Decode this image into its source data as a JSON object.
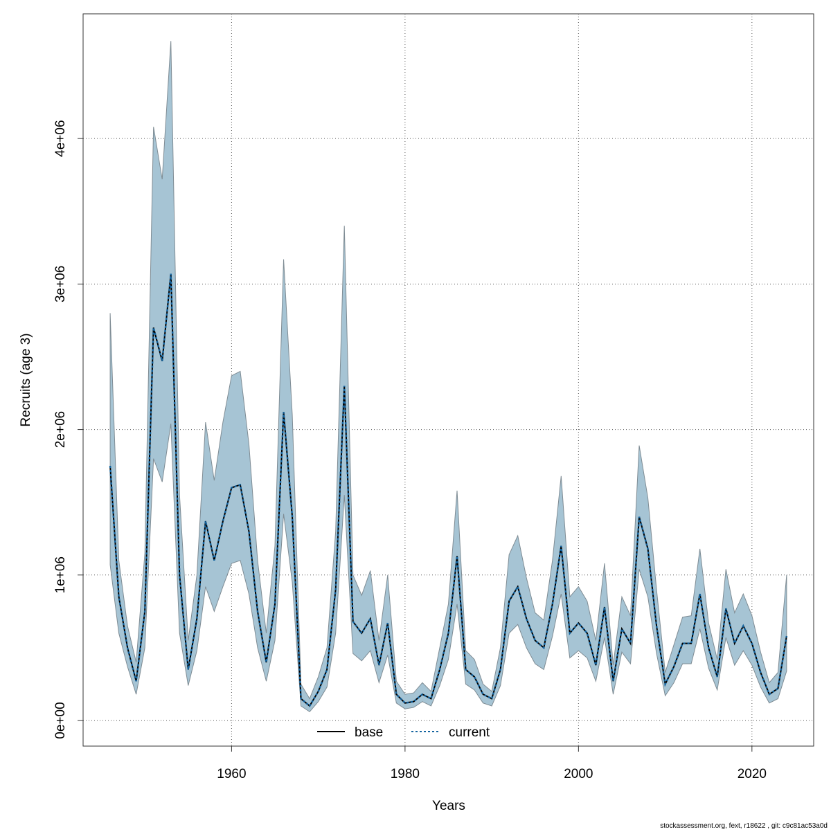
{
  "chart_data": {
    "type": "line",
    "x_label": "Years",
    "y_label": "Recruits (age 3)",
    "footer": "stockassessment.org, fext, r18622 , git: c9c81ac53a0d",
    "x": [
      1946,
      1947,
      1948,
      1949,
      1950,
      1951,
      1952,
      1953,
      1954,
      1955,
      1956,
      1957,
      1958,
      1959,
      1960,
      1961,
      1962,
      1963,
      1964,
      1965,
      1966,
      1967,
      1968,
      1969,
      1970,
      1971,
      1972,
      1973,
      1974,
      1975,
      1976,
      1977,
      1978,
      1979,
      1980,
      1981,
      1982,
      1983,
      1984,
      1985,
      1986,
      1987,
      1988,
      1989,
      1990,
      1991,
      1992,
      1993,
      1994,
      1995,
      1996,
      1997,
      1998,
      1999,
      2000,
      2001,
      2002,
      2003,
      2004,
      2005,
      2006,
      2007,
      2008,
      2009,
      2010,
      2011,
      2012,
      2013,
      2014,
      2015,
      2016,
      2017,
      2018,
      2019,
      2020,
      2021,
      2022,
      2023,
      2024
    ],
    "series": [
      {
        "name": "base",
        "color": "#000000",
        "dash": false,
        "values": [
          1750000.0,
          850000.0,
          500000.0,
          270000.0,
          750000.0,
          2700000.0,
          2470000.0,
          3070000.0,
          1000000.0,
          350000.0,
          700000.0,
          1370000.0,
          1100000.0,
          1370000.0,
          1600000.0,
          1620000.0,
          1300000.0,
          750000.0,
          400000.0,
          800000.0,
          2120000.0,
          1400000.0,
          150000.0,
          100000.0,
          200000.0,
          350000.0,
          900000.0,
          2300000.0,
          680000.0,
          600000.0,
          700000.0,
          380000.0,
          670000.0,
          180000.0,
          120000.0,
          130000.0,
          180000.0,
          150000.0,
          350000.0,
          600000.0,
          1130000.0,
          350000.0,
          300000.0,
          180000.0,
          150000.0,
          350000.0,
          820000.0,
          920000.0,
          700000.0,
          550000.0,
          500000.0,
          800000.0,
          1200000.0,
          600000.0,
          670000.0,
          600000.0,
          380000.0,
          780000.0,
          270000.0,
          630000.0,
          530000.0,
          1400000.0,
          1180000.0,
          650000.0,
          250000.0,
          370000.0,
          530000.0,
          530000.0,
          870000.0,
          500000.0,
          300000.0,
          770000.0,
          530000.0,
          650000.0,
          530000.0,
          330000.0,
          180000.0,
          220000.0,
          580000.0
        ]
      },
      {
        "name": "current",
        "color": "#1565a0",
        "dash": true,
        "values": [
          1750000.0,
          850000.0,
          500000.0,
          270000.0,
          750000.0,
          2700000.0,
          2470000.0,
          3070000.0,
          1000000.0,
          350000.0,
          700000.0,
          1370000.0,
          1100000.0,
          1370000.0,
          1600000.0,
          1620000.0,
          1300000.0,
          750000.0,
          400000.0,
          800000.0,
          2120000.0,
          1400000.0,
          150000.0,
          100000.0,
          200000.0,
          350000.0,
          900000.0,
          2300000.0,
          680000.0,
          600000.0,
          700000.0,
          380000.0,
          670000.0,
          180000.0,
          120000.0,
          130000.0,
          180000.0,
          150000.0,
          350000.0,
          600000.0,
          1130000.0,
          350000.0,
          300000.0,
          180000.0,
          150000.0,
          350000.0,
          820000.0,
          920000.0,
          700000.0,
          550000.0,
          500000.0,
          800000.0,
          1200000.0,
          600000.0,
          670000.0,
          600000.0,
          380000.0,
          780000.0,
          270000.0,
          630000.0,
          530000.0,
          1400000.0,
          1180000.0,
          650000.0,
          250000.0,
          370000.0,
          530000.0,
          530000.0,
          870000.0,
          500000.0,
          300000.0,
          770000.0,
          530000.0,
          650000.0,
          530000.0,
          330000.0,
          180000.0,
          220000.0,
          580000.0
        ]
      }
    ],
    "band": {
      "color": "#a6c4d4",
      "upper": [
        2800000.0,
        1100000.0,
        650000.0,
        400000.0,
        1150000.0,
        4080000.0,
        3720000.0,
        4670000.0,
        1550000.0,
        550000.0,
        1000000.0,
        2050000.0,
        1650000.0,
        2050000.0,
        2370000.0,
        2400000.0,
        1900000.0,
        1100000.0,
        600000.0,
        1200000.0,
        3170000.0,
        2100000.0,
        250000.0,
        150000.0,
        300000.0,
        500000.0,
        1300000.0,
        3400000.0,
        1000000.0,
        860000.0,
        1030000.0,
        550000.0,
        1000000.0,
        270000.0,
        180000.0,
        190000.0,
        260000.0,
        200000.0,
        500000.0,
        800000.0,
        1580000.0,
        480000.0,
        420000.0,
        250000.0,
        200000.0,
        500000.0,
        1140000.0,
        1270000.0,
        980000.0,
        740000.0,
        690000.0,
        1100000.0,
        1680000.0,
        850000.0,
        920000.0,
        820000.0,
        550000.0,
        1080000.0,
        380000.0,
        850000.0,
        720000.0,
        1890000.0,
        1530000.0,
        900000.0,
        330000.0,
        520000.0,
        710000.0,
        720000.0,
        1180000.0,
        670000.0,
        420000.0,
        1040000.0,
        740000.0,
        870000.0,
        720000.0,
        470000.0,
        260000.0,
        330000.0,
        1000000.0
      ],
      "lower": [
        1070000.0,
        600000.0,
        370000.0,
        180000.0,
        500000.0,
        1800000.0,
        1640000.0,
        2040000.0,
        600000.0,
        240000.0,
        480000.0,
        920000.0,
        750000.0,
        920000.0,
        1080000.0,
        1100000.0,
        870000.0,
        500000.0,
        270000.0,
        550000.0,
        1420000.0,
        950000.0,
        100000.0,
        60000.0,
        130000.0,
        230000.0,
        600000.0,
        1550000.0,
        460000.0,
        410000.0,
        480000.0,
        260000.0,
        450000.0,
        120000.0,
        80000.0,
        90000.0,
        130000.0,
        100000.0,
        240000.0,
        420000.0,
        800000.0,
        250000.0,
        210000.0,
        120000.0,
        100000.0,
        240000.0,
        600000.0,
        660000.0,
        500000.0,
        390000.0,
        350000.0,
        580000.0,
        870000.0,
        430000.0,
        480000.0,
        430000.0,
        270000.0,
        570000.0,
        180000.0,
        470000.0,
        390000.0,
        1040000.0,
        850000.0,
        460000.0,
        170000.0,
        260000.0,
        390000.0,
        390000.0,
        630000.0,
        360000.0,
        210000.0,
        570000.0,
        380000.0,
        480000.0,
        380000.0,
        230000.0,
        120000.0,
        150000.0,
        340000.0
      ]
    },
    "xlim": [
      1942.88,
      2027.12
    ],
    "xticks": [
      1960,
      1980,
      2000,
      2020
    ],
    "ylim": [
      -176000,
      4857000
    ],
    "yticks": [
      {
        "value": 0,
        "label": "0e+00"
      },
      {
        "value": 1000000,
        "label": "1e+06"
      },
      {
        "value": 2000000,
        "label": "2e+06"
      },
      {
        "value": 3000000,
        "label": "3e+06"
      },
      {
        "value": 4000000,
        "label": "4e+06"
      }
    ],
    "grid": true,
    "legend": "bottom"
  }
}
